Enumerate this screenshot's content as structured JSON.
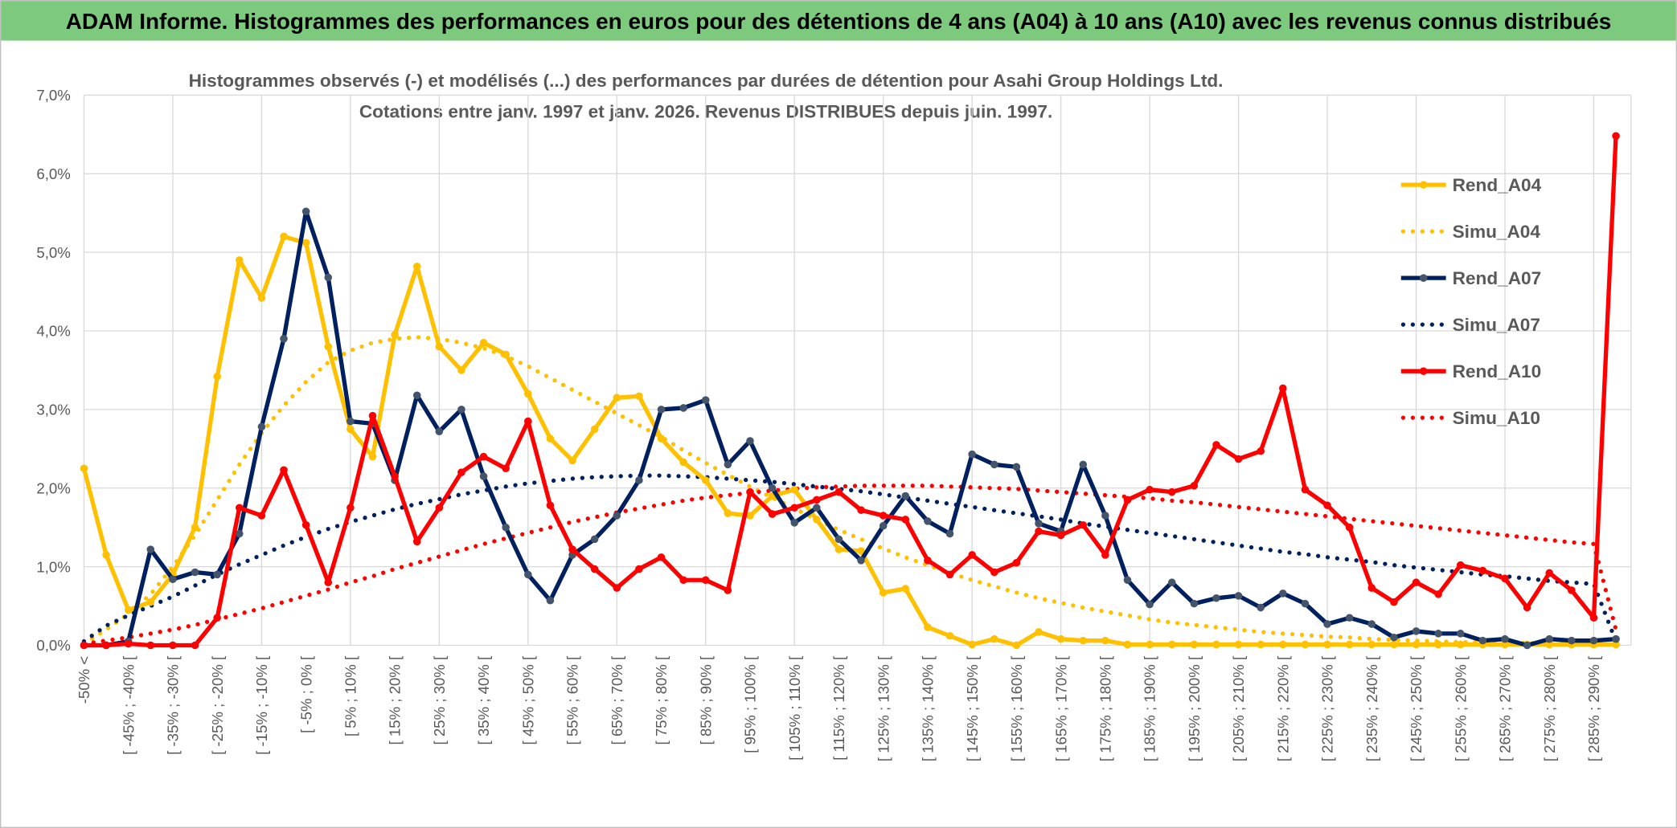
{
  "header": {
    "title": "ADAM Informe. Histogrammes des performances en euros pour des détentions de 4 ans (A04) à 10 ans (A10) avec les revenus connus distribués",
    "title_bg": "#7DC97D"
  },
  "chart_data": {
    "type": "line",
    "title": "Histogrammes observés (-) et modélisés (...) des performances par durées de détention pour Asahi Group Holdings Ltd.",
    "subtitle": "Cotations entre janv. 1997 et janv. 2026. Revenus DISTRIBUES depuis juin. 1997.",
    "xlabel": "",
    "ylabel": "",
    "ylim": [
      0,
      7
    ],
    "y_ticks": [
      "0,0%",
      "1,0%",
      "2,0%",
      "3,0%",
      "4,0%",
      "5,0%",
      "6,0%",
      "7,0%"
    ],
    "x_tick_labels": [
      "-50% <",
      "[ -45% ; -40% [",
      "[ -35% ; -30% [",
      "[ -25% ; -20% [",
      "[ -15% ; -10% [",
      "[ -5% ; 0% [",
      "[ 5% ; 10% [",
      "[ 15% ; 20% [",
      "[ 25% ; 30% [",
      "[ 35% ; 40% [",
      "[ 45% ; 50% [",
      "[ 55% ; 60% [",
      "[ 65% ; 70% [",
      "[ 75% ; 80% [",
      "[ 85% ; 90% [",
      "[ 95% ; 100% [",
      "[ 105% ; 110% [",
      "[ 115% ; 120% [",
      "[ 125% ; 130% [",
      "[ 135% ; 140% [",
      "[ 145% ; 150% [",
      "[ 155% ; 160% [",
      "[ 165% ; 170% [",
      "[ 175% ; 180% [",
      "[ 185% ; 190% [",
      "[ 195% ; 200% [",
      "[ 205% ; 210% [",
      "[ 215% ; 220% [",
      "[ 225% ; 230% [",
      "[ 235% ; 240% [",
      "[ 245% ; 250% [",
      "[ 255% ; 260% [",
      "[ 265% ; 270% [",
      "[ 275% ; 280% [",
      "[ 285% ; 290% ["
    ],
    "grid": true,
    "legend_position": "right",
    "unit": "%",
    "series": [
      {
        "name": "Rend_A04",
        "color": "#FFC000",
        "style": "solid",
        "markers": true,
        "marker_color": "#FFC000",
        "values": [
          2.25,
          1.15,
          0.45,
          0.55,
          0.9,
          1.5,
          3.42,
          4.9,
          4.42,
          5.2,
          5.12,
          3.8,
          2.75,
          2.4,
          3.95,
          4.82,
          3.8,
          3.5,
          3.85,
          3.7,
          3.2,
          2.63,
          2.35,
          2.75,
          3.15,
          3.17,
          2.63,
          2.33,
          2.1,
          1.68,
          1.65,
          1.9,
          1.98,
          1.6,
          1.22,
          1.2,
          0.67,
          0.72,
          0.23,
          0.12,
          0.01,
          0.08,
          0.0,
          0.17,
          0.08,
          0.06,
          0.06,
          0.01,
          0.01,
          0.01,
          0.01,
          0.01,
          0.01,
          0.01,
          0.01,
          0.01,
          0.01,
          0.01,
          0.01,
          0.01,
          0.01,
          0.01,
          0.01,
          0.01,
          0.01,
          0.01,
          0.01,
          0.01,
          0.01,
          0.01
        ]
      },
      {
        "name": "Simu_A04",
        "color": "#FFC000",
        "style": "dotted",
        "markers": false,
        "values": [
          0.02,
          0.2,
          0.4,
          0.65,
          1.0,
          1.4,
          1.85,
          2.3,
          2.7,
          3.05,
          3.35,
          3.6,
          3.75,
          3.85,
          3.9,
          3.92,
          3.9,
          3.85,
          3.78,
          3.68,
          3.55,
          3.4,
          3.25,
          3.1,
          2.95,
          2.8,
          2.65,
          2.48,
          2.32,
          2.17,
          2.02,
          1.88,
          1.74,
          1.6,
          1.47,
          1.35,
          1.23,
          1.12,
          1.02,
          0.92,
          0.83,
          0.75,
          0.67,
          0.6,
          0.54,
          0.48,
          0.43,
          0.38,
          0.33,
          0.29,
          0.26,
          0.23,
          0.2,
          0.17,
          0.15,
          0.13,
          0.11,
          0.1,
          0.08,
          0.07,
          0.06,
          0.05,
          0.04,
          0.04,
          0.03,
          0.03,
          0.02,
          0.02,
          0.02,
          0.01
        ]
      },
      {
        "name": "Rend_A07",
        "color": "#002060",
        "style": "solid",
        "markers": true,
        "marker_color": "#44546A",
        "values": [
          0.0,
          0.0,
          0.05,
          1.22,
          0.84,
          0.93,
          0.9,
          1.42,
          2.78,
          3.9,
          5.52,
          4.68,
          2.85,
          2.82,
          2.1,
          3.18,
          2.72,
          3.0,
          2.15,
          1.5,
          0.9,
          0.57,
          1.15,
          1.35,
          1.65,
          2.1,
          3.0,
          3.02,
          3.12,
          2.3,
          2.6,
          2.0,
          1.56,
          1.75,
          1.35,
          1.08,
          1.52,
          1.9,
          1.58,
          1.42,
          2.43,
          2.3,
          2.27,
          1.55,
          1.45,
          2.3,
          1.65,
          0.83,
          0.52,
          0.8,
          0.53,
          0.6,
          0.63,
          0.48,
          0.66,
          0.53,
          0.27,
          0.35,
          0.27,
          0.1,
          0.18,
          0.15,
          0.15,
          0.06,
          0.08,
          0.0,
          0.08,
          0.06,
          0.06,
          0.08
        ]
      },
      {
        "name": "Simu_A07",
        "color": "#002060",
        "style": "dotted",
        "markers": false,
        "values": [
          0.05,
          0.25,
          0.38,
          0.5,
          0.62,
          0.76,
          0.9,
          1.03,
          1.15,
          1.27,
          1.38,
          1.48,
          1.57,
          1.65,
          1.73,
          1.8,
          1.86,
          1.92,
          1.97,
          2.02,
          2.06,
          2.09,
          2.12,
          2.14,
          2.15,
          2.16,
          2.16,
          2.15,
          2.14,
          2.12,
          2.1,
          2.08,
          2.05,
          2.02,
          1.99,
          1.96,
          1.92,
          1.88,
          1.84,
          1.8,
          1.76,
          1.72,
          1.68,
          1.64,
          1.6,
          1.55,
          1.51,
          1.47,
          1.43,
          1.39,
          1.35,
          1.31,
          1.27,
          1.23,
          1.19,
          1.16,
          1.12,
          1.09,
          1.06,
          1.02,
          0.99,
          0.96,
          0.93,
          0.9,
          0.88,
          0.85,
          0.82,
          0.8,
          0.78,
          0.05
        ]
      },
      {
        "name": "Rend_A10",
        "color": "#FF0000",
        "style": "solid",
        "markers": true,
        "marker_color": "#FF0000",
        "values": [
          0.0,
          0.0,
          0.02,
          0.0,
          0.0,
          0.0,
          0.35,
          1.75,
          1.65,
          2.23,
          1.53,
          0.8,
          1.75,
          2.92,
          2.15,
          1.32,
          1.75,
          2.2,
          2.4,
          2.25,
          2.85,
          1.78,
          1.22,
          0.97,
          0.73,
          0.97,
          1.12,
          0.83,
          0.83,
          0.7,
          1.95,
          1.67,
          1.75,
          1.85,
          1.95,
          1.72,
          1.65,
          1.6,
          1.08,
          0.9,
          1.15,
          0.93,
          1.05,
          1.45,
          1.4,
          1.53,
          1.15,
          1.85,
          1.98,
          1.95,
          2.03,
          2.55,
          2.37,
          2.47,
          3.27,
          1.98,
          1.78,
          1.5,
          0.73,
          0.55,
          0.8,
          0.65,
          1.02,
          0.95,
          0.85,
          0.48,
          0.92,
          0.7,
          0.35,
          6.48
        ]
      },
      {
        "name": "Simu_A10",
        "color": "#FF0000",
        "style": "dotted",
        "markers": false,
        "values": [
          0.02,
          0.06,
          0.1,
          0.15,
          0.2,
          0.26,
          0.33,
          0.4,
          0.47,
          0.55,
          0.63,
          0.71,
          0.8,
          0.88,
          0.97,
          1.05,
          1.13,
          1.21,
          1.29,
          1.36,
          1.43,
          1.5,
          1.57,
          1.63,
          1.69,
          1.74,
          1.79,
          1.84,
          1.88,
          1.91,
          1.94,
          1.97,
          1.99,
          2.01,
          2.02,
          2.03,
          2.03,
          2.03,
          2.03,
          2.02,
          2.01,
          2.0,
          1.99,
          1.97,
          1.95,
          1.93,
          1.91,
          1.89,
          1.87,
          1.84,
          1.82,
          1.79,
          1.76,
          1.73,
          1.7,
          1.67,
          1.64,
          1.61,
          1.58,
          1.55,
          1.52,
          1.49,
          1.46,
          1.43,
          1.4,
          1.37,
          1.34,
          1.31,
          1.29,
          0.2
        ]
      }
    ]
  }
}
